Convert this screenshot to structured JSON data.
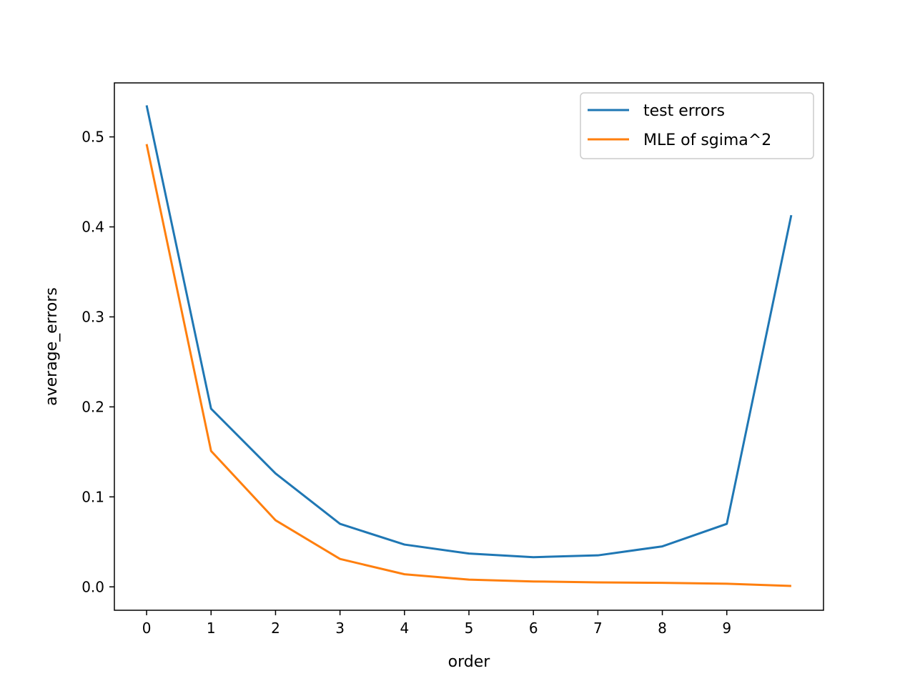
{
  "chart_data": {
    "type": "line",
    "title": "",
    "xlabel": "order",
    "ylabel": "average_errors",
    "x": [
      0,
      1,
      2,
      3,
      4,
      5,
      6,
      7,
      8,
      9,
      10
    ],
    "xticks": [
      "0",
      "1",
      "2",
      "3",
      "4",
      "5",
      "6",
      "7",
      "8",
      "9"
    ],
    "yticks": [
      "0.0",
      "0.1",
      "0.2",
      "0.3",
      "0.4",
      "0.5"
    ],
    "xlim": [
      -0.5,
      10.5
    ],
    "ylim": [
      -0.026,
      0.56
    ],
    "grid": false,
    "legend_position": "top-right",
    "series": [
      {
        "name": "test errors",
        "color": "#1f77b4",
        "values": [
          0.535,
          0.198,
          0.126,
          0.07,
          0.047,
          0.037,
          0.033,
          0.035,
          0.045,
          0.07,
          0.413
        ]
      },
      {
        "name": "MLE of sgima^2",
        "color": "#ff7f0e",
        "values": [
          0.492,
          0.151,
          0.074,
          0.031,
          0.014,
          0.008,
          0.006,
          0.005,
          0.0045,
          0.0035,
          0.001
        ]
      }
    ]
  }
}
